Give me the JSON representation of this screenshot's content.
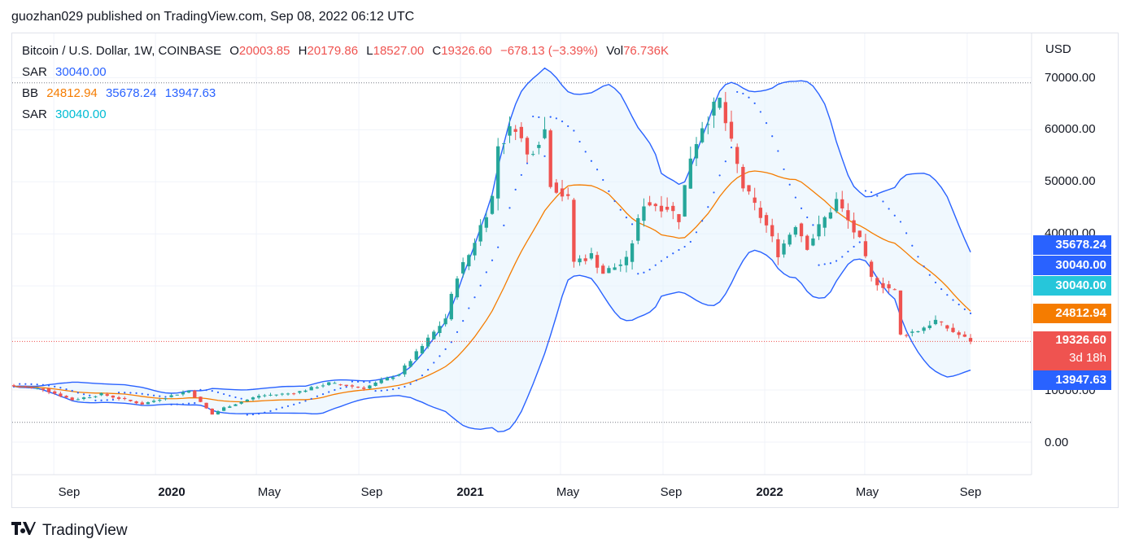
{
  "header": {
    "publish_line": "guozhan029 published on TradingView.com, Sep 08, 2022 06:12 UTC"
  },
  "legend": {
    "symbol": "Bitcoin / U.S. Dollar, 1W, COINBASE",
    "open_label": "O",
    "open": "20003.85",
    "high_label": "H",
    "high": "20179.86",
    "low_label": "L",
    "low": "18527.00",
    "close_label": "C",
    "close": "19326.60",
    "change": "−678.13 (−3.39%)",
    "vol_label": "Vol",
    "vol": "76.736K",
    "sar1_label": "SAR",
    "sar1_value": "30040.00",
    "bb_label": "BB",
    "bb_basis": "24812.94",
    "bb_upper": "35678.24",
    "bb_lower": "13947.63",
    "sar2_label": "SAR",
    "sar2_value": "30040.00"
  },
  "axis": {
    "currency": "USD",
    "y_ticks": [
      "70000.00",
      "60000.00",
      "50000.00",
      "40000.00",
      "10000.00",
      "0.00"
    ],
    "x_ticks": [
      {
        "label": "Sep",
        "bold": false
      },
      {
        "label": "2020",
        "bold": true
      },
      {
        "label": "May",
        "bold": false
      },
      {
        "label": "Sep",
        "bold": false
      },
      {
        "label": "2021",
        "bold": true
      },
      {
        "label": "May",
        "bold": false
      },
      {
        "label": "Sep",
        "bold": false
      },
      {
        "label": "2022",
        "bold": true
      },
      {
        "label": "May",
        "bold": false
      },
      {
        "label": "Sep",
        "bold": false
      }
    ]
  },
  "price_tags": {
    "bb_upper": "35678.24",
    "sar1": "30040.00",
    "sar2": "30040.00",
    "bb_basis": "24812.94",
    "last_price": "19326.60",
    "countdown": "3d 18h",
    "bb_lower": "13947.63"
  },
  "colors": {
    "up": "#26a69a",
    "down": "#ef5350",
    "bb_basis": "#f57c00",
    "bb_band": "#2962ff",
    "sar1": "#2962ff",
    "sar2": "#00bcd4",
    "band_fill": "#e3f2fd"
  },
  "branding": {
    "logo_text": "TradingView"
  },
  "chart_data": {
    "type": "candlestick",
    "title": "Bitcoin / U.S. Dollar, 1W, COINBASE",
    "x_range": [
      "2019-07-15",
      "2022-09-05"
    ],
    "ylim": [
      -6000,
      76000
    ],
    "x_ticks": [
      "2019-09-01",
      "2020-01-01",
      "2020-05-01",
      "2020-09-01",
      "2021-01-01",
      "2021-05-01",
      "2021-09-01",
      "2022-01-01",
      "2022-05-01",
      "2022-09-01"
    ],
    "candles_sample": [
      {
        "date": "2019-07-15",
        "o": 10500,
        "h": 11500,
        "l": 9200,
        "c": 10700
      },
      {
        "date": "2019-09-23",
        "o": 9700,
        "h": 10200,
        "l": 7800,
        "c": 8100
      },
      {
        "date": "2019-12-16",
        "o": 7200,
        "h": 7700,
        "l": 6500,
        "c": 7300
      },
      {
        "date": "2020-02-10",
        "o": 9800,
        "h": 10500,
        "l": 9600,
        "c": 9900
      },
      {
        "date": "2020-03-09",
        "o": 8000,
        "h": 8200,
        "l": 3800,
        "c": 5300
      },
      {
        "date": "2020-07-27",
        "o": 11000,
        "h": 12000,
        "l": 10500,
        "c": 11300
      },
      {
        "date": "2020-11-16",
        "o": 16000,
        "h": 18800,
        "l": 15500,
        "c": 18400
      },
      {
        "date": "2020-12-28",
        "o": 26500,
        "h": 34800,
        "l": 26000,
        "c": 32100
      },
      {
        "date": "2021-02-15",
        "o": 48500,
        "h": 58300,
        "l": 47000,
        "c": 57000
      },
      {
        "date": "2021-04-12",
        "o": 59900,
        "h": 64800,
        "l": 53000,
        "c": 56000
      },
      {
        "date": "2021-05-17",
        "o": 46400,
        "h": 48800,
        "l": 30000,
        "c": 34700
      },
      {
        "date": "2021-07-19",
        "o": 31500,
        "h": 35400,
        "l": 29300,
        "c": 34800
      },
      {
        "date": "2021-09-06",
        "o": 52600,
        "h": 52900,
        "l": 42800,
        "c": 45200
      },
      {
        "date": "2021-11-08",
        "o": 63300,
        "h": 69000,
        "l": 62300,
        "c": 65500
      },
      {
        "date": "2022-01-17",
        "o": 43000,
        "h": 43400,
        "l": 33000,
        "c": 36300
      },
      {
        "date": "2022-03-28",
        "o": 46800,
        "h": 48200,
        "l": 45000,
        "c": 46400
      },
      {
        "date": "2022-06-13",
        "o": 26600,
        "h": 26800,
        "l": 17600,
        "c": 20500
      },
      {
        "date": "2022-09-05",
        "o": 20003.85,
        "h": 20179.86,
        "l": 18527,
        "c": 19326.6
      }
    ],
    "indicators": {
      "bollinger_bands": {
        "basis": 24812.94,
        "upper": 35678.24,
        "lower": 13947.63
      },
      "parabolic_sar": [
        30040.0,
        30040.0
      ]
    },
    "last_price": 19326.6,
    "volume": "76.736K",
    "grid": true
  }
}
